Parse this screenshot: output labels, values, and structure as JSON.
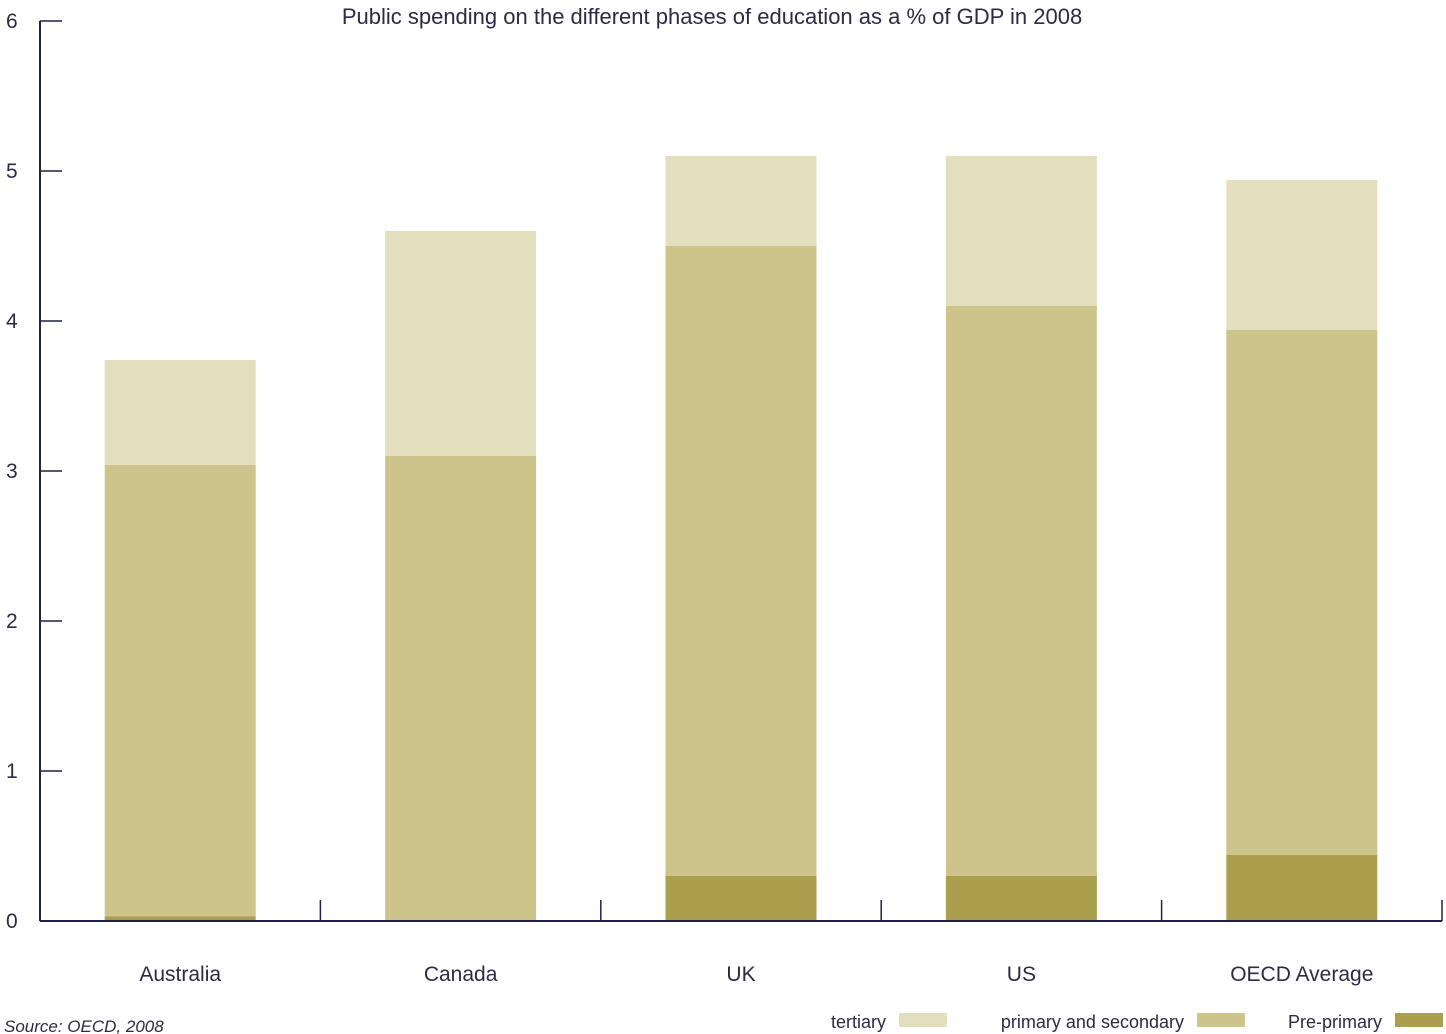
{
  "chart_data": {
    "type": "bar",
    "stacked": true,
    "title": "Public spending on the different phases of education as a % of GDP in 2008",
    "xlabel": "",
    "ylabel": "",
    "ylim": [
      0,
      6
    ],
    "yticks": [
      "0",
      "1",
      "2",
      "3",
      "4",
      "5",
      "6"
    ],
    "grid": false,
    "legend_position": "bottom-right",
    "categories": [
      "Australia",
      "Canada",
      "UK",
      "US",
      "OECD Average"
    ],
    "series": [
      {
        "name": "Pre-primary",
        "color": "#ab9f4e",
        "values": [
          0.03,
          0.0,
          0.3,
          0.3,
          0.44
        ]
      },
      {
        "name": "primary and secondary",
        "color": "#cdc48c",
        "values": [
          3.01,
          3.1,
          4.2,
          3.8,
          3.5
        ]
      },
      {
        "name": "tertiary",
        "color": "#e3debd",
        "values": [
          0.7,
          1.5,
          0.6,
          1.0,
          1.0
        ]
      }
    ],
    "legend_order": [
      "tertiary",
      "primary and secondary",
      "Pre-primary"
    ],
    "source": "Source: OECD, 2008"
  },
  "colors": {
    "axis": "#1e2248",
    "text": "#2b2b44"
  }
}
